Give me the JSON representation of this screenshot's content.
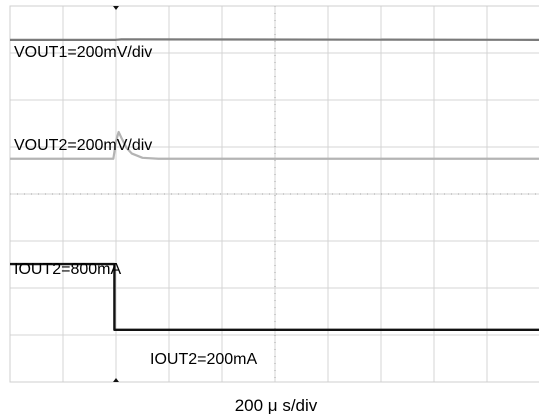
{
  "chart_data": {
    "type": "line",
    "title": "",
    "xlabel": "200 µ s/div",
    "ylabel": "",
    "grid": true,
    "x_divisions": 10,
    "y_divisions": 8,
    "x_unit": "div",
    "y_unit": "div",
    "xlim": [
      0,
      10
    ],
    "ylim": [
      0,
      8
    ],
    "trigger_marker_div": 2.0,
    "annotations": [
      {
        "text": "VOUT1=200mV/div"
      },
      {
        "text": "VOUT2=200mV/div"
      },
      {
        "text": "IOUT2=800mA"
      },
      {
        "text": "IOUT2=200mA"
      }
    ],
    "series": [
      {
        "color": "#7a7a7a",
        "x": [
          0,
          2.0,
          2.1,
          10
        ],
        "y": [
          7.28,
          7.28,
          7.29,
          7.28
        ]
      },
      {
        "color": "#b4b4b4",
        "x": [
          0,
          1.95,
          2.0,
          2.05,
          2.1,
          2.2,
          2.3,
          2.5,
          2.8,
          10
        ],
        "y": [
          4.75,
          4.75,
          5.12,
          5.32,
          5.2,
          4.98,
          4.86,
          4.77,
          4.75,
          4.75
        ]
      },
      {
        "color": "#111111",
        "x": [
          0,
          1.97,
          1.97,
          10
        ],
        "y": [
          2.51,
          2.51,
          1.11,
          1.11
        ]
      }
    ]
  },
  "xlabel_text": "200 μ s/div"
}
